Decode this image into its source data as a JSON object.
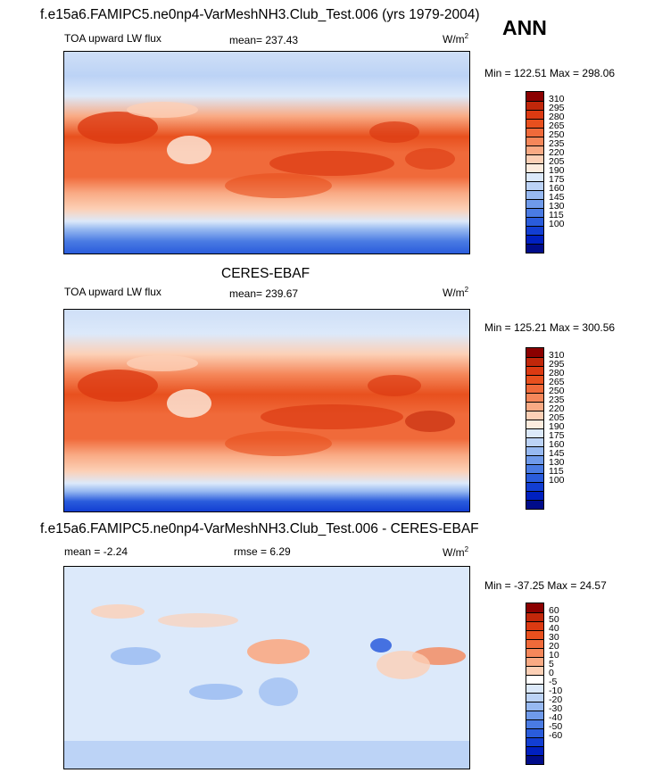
{
  "header": {
    "title": "f.e15a6.FAMIPC5.ne0np4-VarMeshNH3.Club_Test.006 (yrs 1979-2004)",
    "season": "ANN"
  },
  "panels": [
    {
      "id": "model",
      "title": "",
      "left_label": "TOA upward LW flux",
      "center_label": "mean= 237.43",
      "units": "W/m",
      "units_sup": "2",
      "minmax": "Min = 122.51 Max = 298.06",
      "colorbar": {
        "labels": [
          "310",
          "295",
          "280",
          "265",
          "250",
          "235",
          "220",
          "205",
          "190",
          "175",
          "160",
          "145",
          "130",
          "115",
          "100"
        ],
        "colors": [
          "#8b0000",
          "#c1270a",
          "#dc3a12",
          "#e8501e",
          "#f06a3a",
          "#f5875a",
          "#f9aa84",
          "#fcd0b6",
          "#fdecde",
          "#dce9fa",
          "#bcd3f6",
          "#97b9f1",
          "#6f9aea",
          "#4a7be3",
          "#2a5cdc",
          "#123ed2",
          "#0020c0",
          "#000c8a"
        ]
      }
    },
    {
      "id": "obs",
      "title": "CERES-EBAF",
      "left_label": "TOA upward LW flux",
      "center_label": "mean= 239.67",
      "units": "W/m",
      "units_sup": "2",
      "minmax": "Min = 125.21 Max = 300.56",
      "colorbar": {
        "labels": [
          "310",
          "295",
          "280",
          "265",
          "250",
          "235",
          "220",
          "205",
          "190",
          "175",
          "160",
          "145",
          "130",
          "115",
          "100"
        ],
        "colors": [
          "#8b0000",
          "#c1270a",
          "#dc3a12",
          "#e8501e",
          "#f06a3a",
          "#f5875a",
          "#f9aa84",
          "#fcd0b6",
          "#fdecde",
          "#dce9fa",
          "#bcd3f6",
          "#97b9f1",
          "#6f9aea",
          "#4a7be3",
          "#2a5cdc",
          "#123ed2",
          "#0020c0",
          "#000c8a"
        ]
      }
    },
    {
      "id": "diff",
      "title": "f.e15a6.FAMIPC5.ne0np4-VarMeshNH3.Club_Test.006 - CERES-EBAF",
      "left_label": "mean =  -2.24",
      "center_label": "rmse =   6.29",
      "units": "W/m",
      "units_sup": "2",
      "minmax": "Min = -37.25 Max =  24.57",
      "colorbar": {
        "labels": [
          "60",
          "50",
          "40",
          "30",
          "20",
          "10",
          "5",
          "0",
          "-5",
          "-10",
          "-20",
          "-30",
          "-40",
          "-50",
          "-60"
        ],
        "colors": [
          "#8b0000",
          "#c1270a",
          "#dc3a12",
          "#e8501e",
          "#f06a3a",
          "#f5875a",
          "#f9aa84",
          "#fcd0b6",
          "#ffffff",
          "#dce9fa",
          "#bcd3f6",
          "#97b9f1",
          "#6f9aea",
          "#4a7be3",
          "#2a5cdc",
          "#123ed2",
          "#0020c0",
          "#000c8a"
        ]
      }
    }
  ],
  "chart_data": [
    {
      "type": "heatmap",
      "title": "TOA upward LW flux",
      "subtitle": "mean= 237.43",
      "units": "W/m2",
      "value_range": [
        122.51,
        298.06
      ],
      "levels": [
        100,
        115,
        130,
        145,
        160,
        175,
        190,
        205,
        220,
        235,
        250,
        265,
        280,
        295,
        310
      ]
    },
    {
      "type": "heatmap",
      "title": "CERES-EBAF",
      "subtitle": "TOA upward LW flux mean= 239.67",
      "units": "W/m2",
      "value_range": [
        125.21,
        300.56
      ],
      "levels": [
        100,
        115,
        130,
        145,
        160,
        175,
        190,
        205,
        220,
        235,
        250,
        265,
        280,
        295,
        310
      ]
    },
    {
      "type": "heatmap",
      "title": "f.e15a6.FAMIPC5.ne0np4-VarMeshNH3.Club_Test.006 - CERES-EBAF",
      "subtitle": "mean = -2.24 rmse = 6.29",
      "units": "W/m2",
      "value_range": [
        -37.25,
        24.57
      ],
      "levels": [
        -60,
        -50,
        -40,
        -30,
        -20,
        -10,
        -5,
        0,
        5,
        10,
        20,
        30,
        40,
        50,
        60
      ]
    }
  ]
}
